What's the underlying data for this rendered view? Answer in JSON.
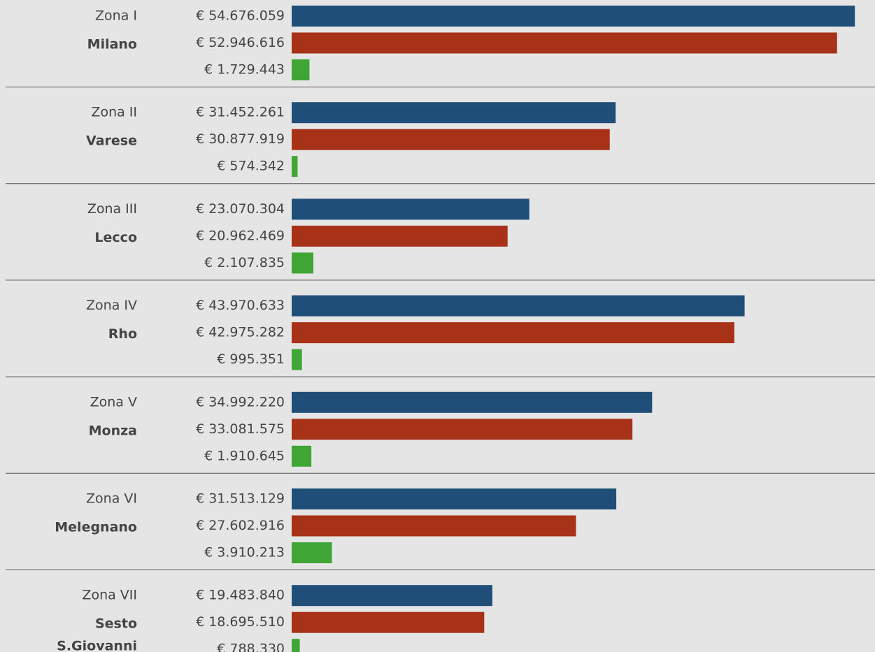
{
  "chart_data": {
    "type": "bar",
    "orientation": "horizontal",
    "categories": [
      "Zona I",
      "Zona II",
      "Zona III",
      "Zona IV",
      "Zona V",
      "Zona VI",
      "Zona VII"
    ],
    "category_names": [
      [
        "Milano"
      ],
      [
        "Varese"
      ],
      [
        "Lecco"
      ],
      [
        "Rho"
      ],
      [
        "Monza"
      ],
      [
        "Melegnano"
      ],
      [
        "Sesto",
        "S.Giovanni"
      ]
    ],
    "xlim": [
      0,
      55000000
    ],
    "series": [
      {
        "color": "#1f4e79",
        "values": [
          54676059,
          31452261,
          23070304,
          43970633,
          34992220,
          31513129,
          19483840
        ],
        "value_labels": [
          "€ 54.676.059",
          "€ 31.452.261",
          "€ 23.070.304",
          "€ 43.970.633",
          "€ 34.992.220",
          "€ 31.513.129",
          "€ 19.483.840"
        ]
      },
      {
        "color": "#a83218",
        "values": [
          52946616,
          30877919,
          20962469,
          42975282,
          33081575,
          27602916,
          18695510
        ],
        "value_labels": [
          "€ 52.946.616",
          "€ 30.877.919",
          "€ 20.962.469",
          "€ 42.975.282",
          "€ 33.081.575",
          "€ 27.602.916",
          "€ 18.695.510"
        ]
      },
      {
        "color": "#3fa535",
        "values": [
          1729443,
          574342,
          2107835,
          995351,
          1910645,
          3910213,
          788330
        ],
        "value_labels": [
          "€ 1.729.443",
          "€ 574.342",
          "€ 2.107.835",
          "€ 995.351",
          "€ 1.910.645",
          "€ 3.910.213",
          "€ 788.330"
        ]
      }
    ]
  }
}
